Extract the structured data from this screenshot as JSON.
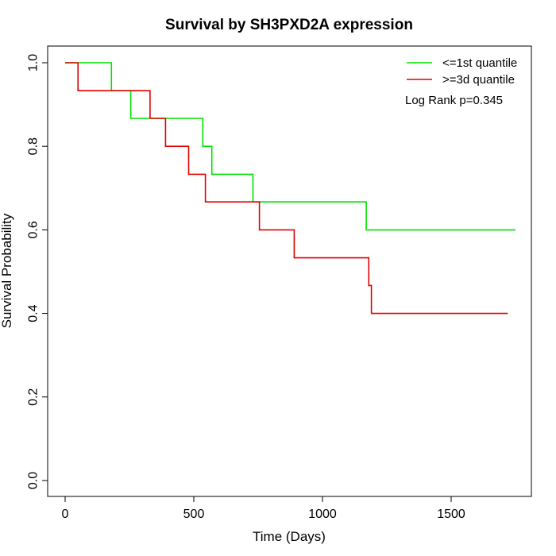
{
  "chart_data": {
    "type": "line",
    "subtype": "kaplan-meier step",
    "title": "Survival by SH3PXD2A expression",
    "xlabel": "Time (Days)",
    "ylabel": "Survival Probability",
    "xlim": [
      0,
      1750
    ],
    "ylim": [
      0,
      1
    ],
    "xticks": [
      0,
      500,
      1000,
      1500
    ],
    "xtick_labels": [
      "0",
      "500",
      "1000",
      "1500"
    ],
    "yticks": [
      0,
      0.2,
      0.4,
      0.6,
      0.8,
      1.0
    ],
    "ytick_labels": [
      "0.0",
      "0.2",
      "0.4",
      "0.6",
      "0.8",
      "1.0"
    ],
    "grid": false,
    "legend_position": "top-right",
    "annotation": "Log Rank p=0.345",
    "series": [
      {
        "name": "<=1st quantile",
        "color": "#00e000",
        "x": [
          0,
          180,
          180,
          255,
          255,
          535,
          535,
          570,
          570,
          730,
          730,
          1170,
          1170,
          1750
        ],
        "y": [
          1.0,
          1.0,
          0.933,
          0.933,
          0.867,
          0.867,
          0.8,
          0.8,
          0.733,
          0.733,
          0.667,
          0.667,
          0.6,
          0.6
        ]
      },
      {
        "name": ">=3d quantile",
        "color": "#e00000",
        "x": [
          0,
          50,
          50,
          330,
          330,
          390,
          390,
          480,
          480,
          545,
          545,
          755,
          755,
          890,
          890,
          1180,
          1180,
          1190,
          1190,
          1720
        ],
        "y": [
          1.0,
          1.0,
          0.933,
          0.933,
          0.867,
          0.867,
          0.8,
          0.8,
          0.733,
          0.733,
          0.667,
          0.667,
          0.6,
          0.6,
          0.533,
          0.533,
          0.467,
          0.467,
          0.4,
          0.4
        ]
      }
    ]
  }
}
